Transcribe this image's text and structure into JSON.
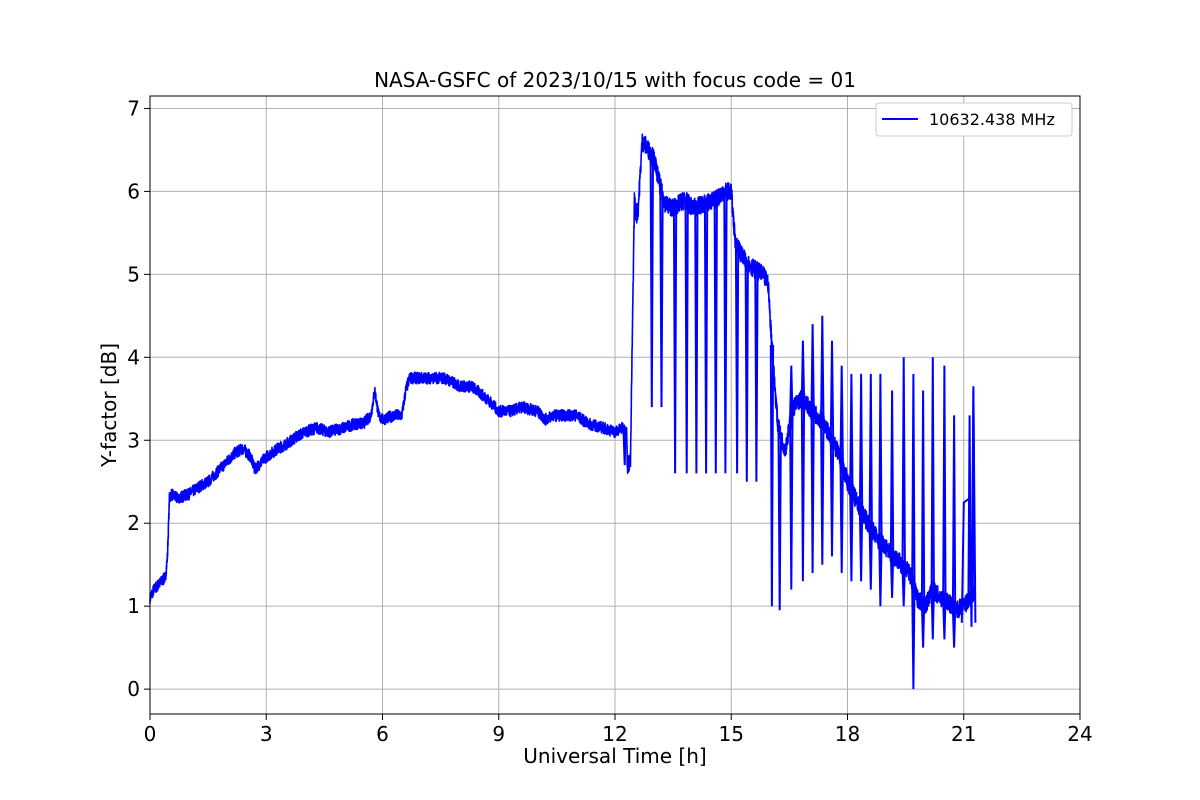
{
  "chart_data": {
    "type": "line",
    "title": "NASA-GSFC of 2023/10/15 with focus code = 01",
    "xlabel": "Universal Time [h]",
    "ylabel": "Y-factor [dB]",
    "xlim": [
      0,
      24
    ],
    "ylim": [
      -0.3,
      7.15
    ],
    "xticks": [
      0,
      3,
      6,
      9,
      12,
      15,
      18,
      21,
      24
    ],
    "yticks": [
      0,
      1,
      2,
      3,
      4,
      5,
      6,
      7
    ],
    "grid": true,
    "legend_position": "top-right",
    "series": [
      {
        "name": "10632.438 MHz",
        "color": "#0000ff",
        "x": [
          0.0,
          0.1,
          0.2,
          0.3,
          0.4,
          0.45,
          0.48,
          0.5,
          0.55,
          0.7,
          1.0,
          1.3,
          1.5,
          1.8,
          2.0,
          2.2,
          2.4,
          2.5,
          2.6,
          2.7,
          3.0,
          3.3,
          3.5,
          3.8,
          4.0,
          4.3,
          4.6,
          5.0,
          5.3,
          5.5,
          5.7,
          5.8,
          5.9,
          6.0,
          6.3,
          6.5,
          6.6,
          6.7,
          7.0,
          7.3,
          7.6,
          8.0,
          8.3,
          8.7,
          9.0,
          9.3,
          9.6,
          10.0,
          10.2,
          10.4,
          10.7,
          11.0,
          11.3,
          11.7,
          12.0,
          12.2,
          12.3,
          12.32,
          12.4,
          12.5,
          12.55,
          12.6,
          12.7,
          12.8,
          13.0,
          13.2,
          13.3,
          13.5,
          13.8,
          14.0,
          14.3,
          14.6,
          14.8,
          15.0,
          15.1,
          15.3,
          15.5,
          15.8,
          15.95,
          16.0,
          16.1,
          16.2,
          16.3,
          16.4,
          16.6,
          16.8,
          17.0,
          17.2,
          17.4,
          17.6,
          17.8,
          18.0,
          18.2,
          18.4,
          18.6,
          18.8,
          19.0,
          19.2,
          19.4,
          19.6,
          19.8,
          20.0,
          20.2,
          20.4,
          20.6,
          20.8,
          21.0,
          21.2,
          21.3
        ],
        "values": [
          1.1,
          1.2,
          1.25,
          1.3,
          1.35,
          1.6,
          2.0,
          2.3,
          2.35,
          2.3,
          2.35,
          2.45,
          2.5,
          2.65,
          2.75,
          2.85,
          2.9,
          2.85,
          2.8,
          2.65,
          2.8,
          2.9,
          2.95,
          3.05,
          3.1,
          3.15,
          3.1,
          3.15,
          3.2,
          3.2,
          3.3,
          3.6,
          3.3,
          3.25,
          3.3,
          3.3,
          3.6,
          3.75,
          3.75,
          3.75,
          3.75,
          3.65,
          3.65,
          3.5,
          3.35,
          3.35,
          3.4,
          3.35,
          3.25,
          3.3,
          3.3,
          3.3,
          3.2,
          3.15,
          3.1,
          3.15,
          3.1,
          2.7,
          2.75,
          5.9,
          5.7,
          5.8,
          6.6,
          6.55,
          6.4,
          6.0,
          5.85,
          5.8,
          5.9,
          5.8,
          5.85,
          5.9,
          6.0,
          6.0,
          5.4,
          5.2,
          5.1,
          5.0,
          4.9,
          4.5,
          3.8,
          3.2,
          3.0,
          2.9,
          3.4,
          3.5,
          3.4,
          3.3,
          3.2,
          3.0,
          2.8,
          2.5,
          2.3,
          2.1,
          1.95,
          1.8,
          1.7,
          1.6,
          1.5,
          1.4,
          1.1,
          1.0,
          1.2,
          1.1,
          1.05,
          0.95,
          1.0,
          1.1,
          1.2
        ]
      }
    ],
    "dips": [
      {
        "x": 12.25,
        "to": 2.7
      },
      {
        "x": 12.95,
        "to": 3.4
      },
      {
        "x": 13.2,
        "to": 3.4
      },
      {
        "x": 13.55,
        "to": 2.6
      },
      {
        "x": 13.85,
        "to": 2.6
      },
      {
        "x": 14.1,
        "to": 2.6
      },
      {
        "x": 14.35,
        "to": 2.6
      },
      {
        "x": 14.6,
        "to": 2.6
      },
      {
        "x": 14.85,
        "to": 2.6
      },
      {
        "x": 15.15,
        "to": 2.6
      },
      {
        "x": 15.4,
        "to": 2.5
      },
      {
        "x": 15.65,
        "to": 2.5
      },
      {
        "x": 16.05,
        "to": 1.0
      },
      {
        "x": 16.25,
        "to": 0.95
      },
      {
        "x": 16.55,
        "to": 1.2
      },
      {
        "x": 16.85,
        "to": 1.3
      },
      {
        "x": 17.1,
        "to": 1.4
      },
      {
        "x": 17.35,
        "to": 1.5
      },
      {
        "x": 17.6,
        "to": 1.6
      },
      {
        "x": 17.85,
        "to": 1.4
      },
      {
        "x": 18.1,
        "to": 1.3
      },
      {
        "x": 18.35,
        "to": 1.3
      },
      {
        "x": 18.6,
        "to": 1.2
      },
      {
        "x": 18.85,
        "to": 1.0
      },
      {
        "x": 19.15,
        "to": 1.1
      },
      {
        "x": 19.45,
        "to": 1.0
      },
      {
        "x": 19.7,
        "to": 0.0
      },
      {
        "x": 19.95,
        "to": 0.5
      },
      {
        "x": 20.2,
        "to": 0.6
      },
      {
        "x": 20.5,
        "to": 0.6
      },
      {
        "x": 20.75,
        "to": 0.5
      }
    ],
    "spikes": [
      {
        "x": 16.55,
        "to": 3.9
      },
      {
        "x": 16.85,
        "to": 4.2
      },
      {
        "x": 17.1,
        "to": 4.4
      },
      {
        "x": 17.35,
        "to": 4.5
      },
      {
        "x": 17.6,
        "to": 4.2
      },
      {
        "x": 17.85,
        "to": 3.9
      },
      {
        "x": 18.1,
        "to": 3.8
      },
      {
        "x": 18.35,
        "to": 3.8
      },
      {
        "x": 18.6,
        "to": 3.8
      },
      {
        "x": 18.85,
        "to": 3.8
      },
      {
        "x": 19.15,
        "to": 3.6
      },
      {
        "x": 19.45,
        "to": 4.0
      },
      {
        "x": 19.7,
        "to": 3.8
      },
      {
        "x": 19.95,
        "to": 3.6
      },
      {
        "x": 20.2,
        "to": 4.0
      },
      {
        "x": 20.5,
        "to": 3.9
      },
      {
        "x": 20.75,
        "to": 3.3
      },
      {
        "x": 21.15,
        "to": 3.3
      },
      {
        "x": 21.25,
        "to": 3.65
      }
    ],
    "tail": {
      "x": [
        20.95,
        21.0,
        21.15,
        21.2,
        21.25,
        21.3
      ],
      "values": [
        0.8,
        2.25,
        2.3,
        0.75,
        3.6,
        0.8
      ]
    }
  }
}
